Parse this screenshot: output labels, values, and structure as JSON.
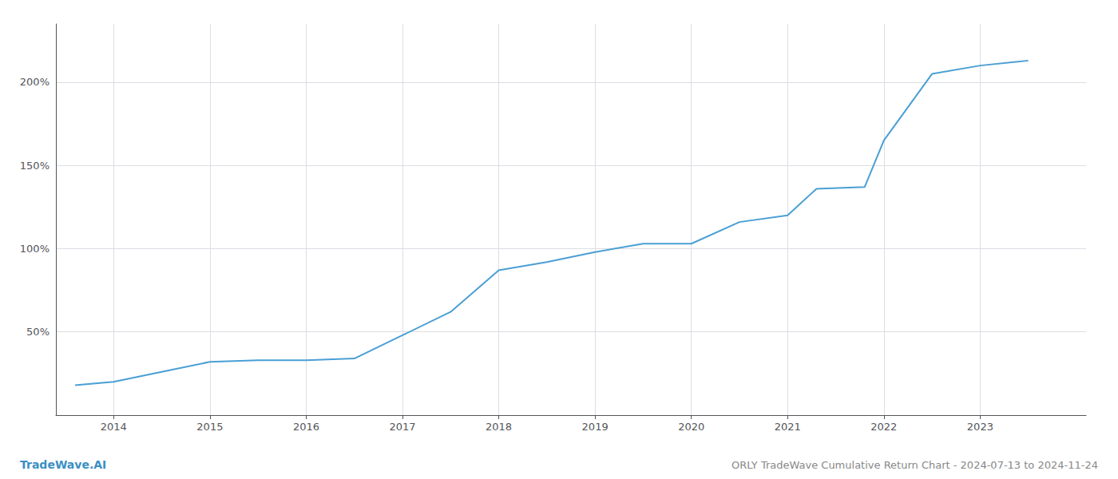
{
  "chart_data": {
    "type": "line",
    "title": "ORLY TradeWave Cumulative Return Chart - 2024-07-13 to 2024-11-24",
    "annotations": [
      "TradeWave.AI"
    ],
    "x": [
      2013.6,
      2014.0,
      2014.5,
      2015.0,
      2015.5,
      2016.0,
      2016.5,
      2017.0,
      2017.5,
      2018.0,
      2018.5,
      2019.0,
      2019.5,
      2020.0,
      2020.5,
      2021.0,
      2021.3,
      2021.8,
      2022.0,
      2022.5,
      2023.0,
      2023.5
    ],
    "values": [
      18,
      20,
      26,
      32,
      33,
      33,
      34,
      48,
      62,
      87,
      92,
      98,
      103,
      103,
      116,
      120,
      136,
      137,
      165,
      205,
      210,
      213
    ],
    "color": "#4a9fd4",
    "xlim": [
      2013.4,
      2024.1
    ],
    "xticks": [
      2014,
      2015,
      2016,
      2017,
      2018,
      2019,
      2020,
      2021,
      2022,
      2023
    ],
    "ylim": [
      0,
      235
    ],
    "yticks": [
      {
        "value": 50,
        "label": "50%"
      },
      {
        "value": 100,
        "label": "100%"
      },
      {
        "value": 150,
        "label": "150%"
      },
      {
        "value": 200,
        "label": "200%"
      }
    ],
    "grid": true
  }
}
